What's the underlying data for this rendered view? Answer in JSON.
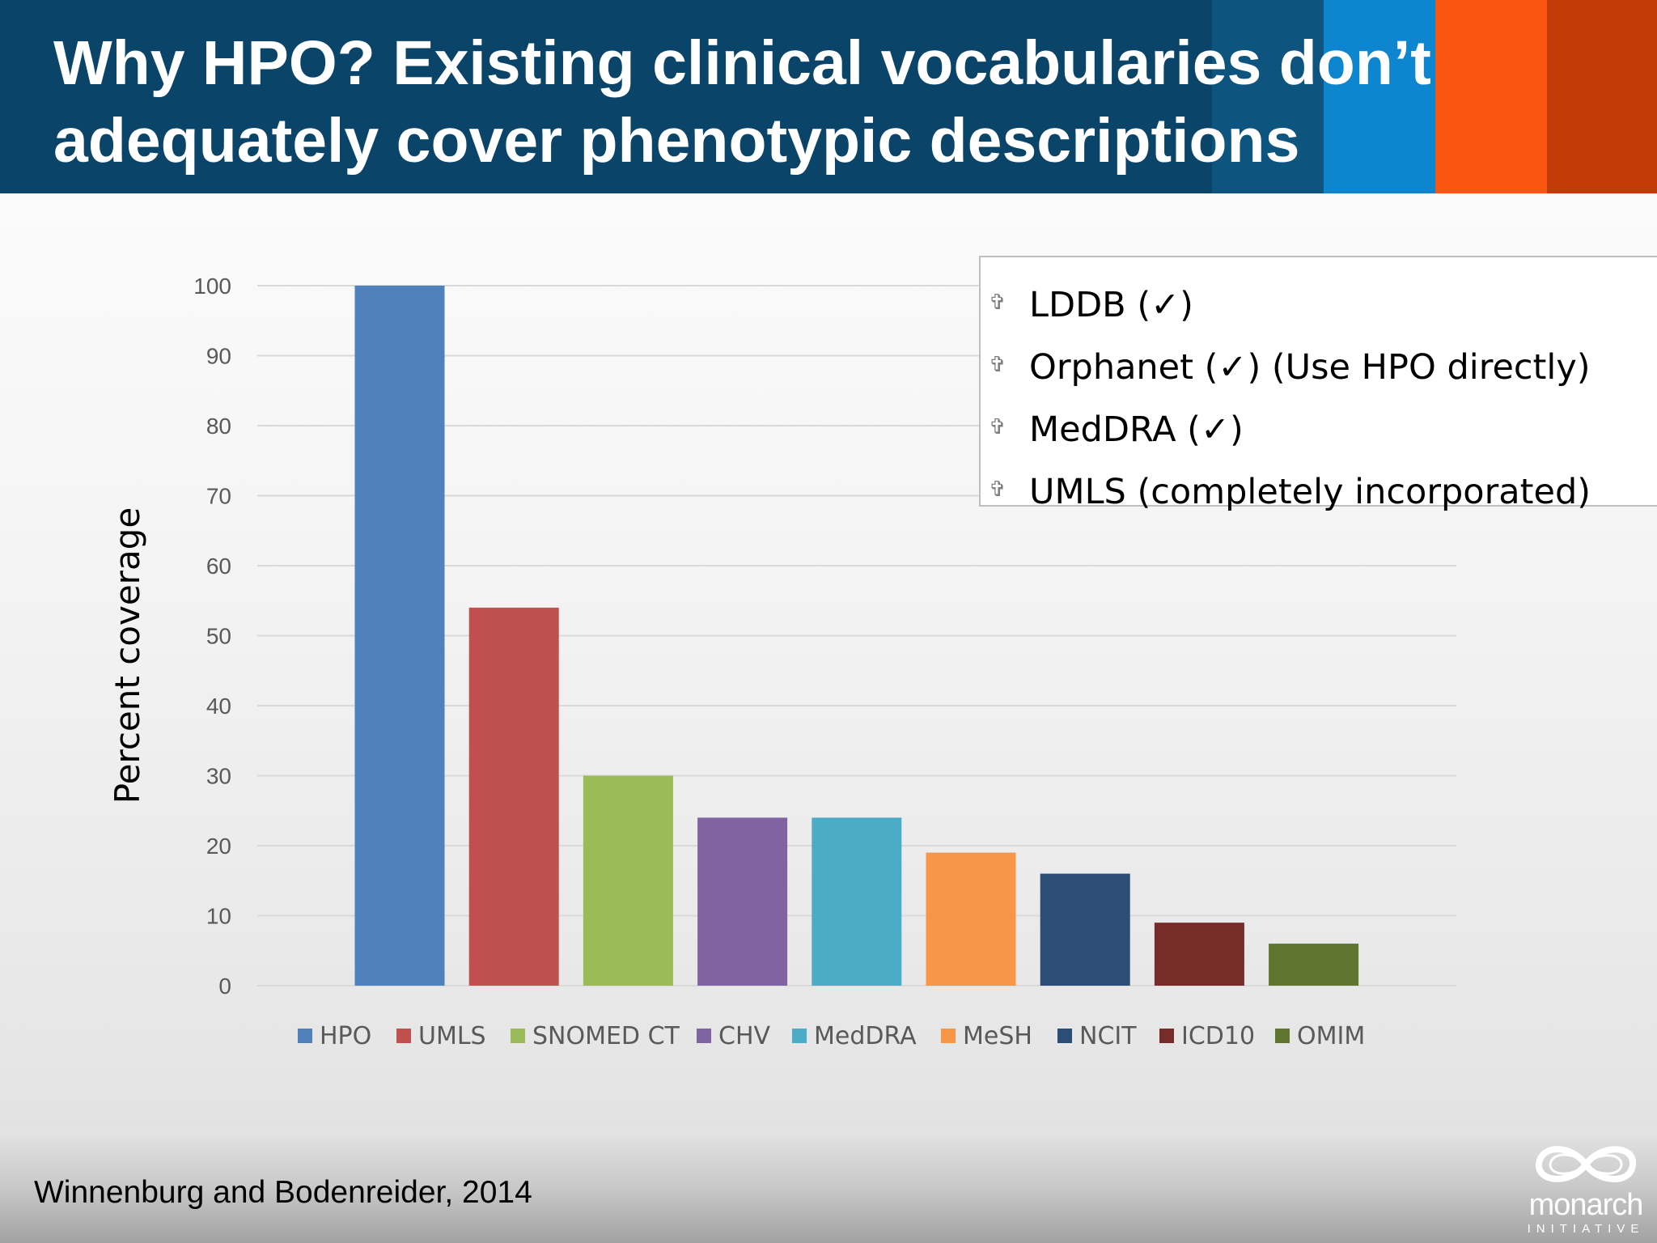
{
  "slide": {
    "title_lines": [
      "Why HPO? Existing clinical vocabularies don’t",
      "adequately cover phenotypic descriptions"
    ],
    "citation": "Winnenburg and Bodenreider, 2014",
    "logo": {
      "word": "monarch",
      "sub": "INITIATIVE"
    }
  },
  "notes": {
    "bullet_icon": "cross-bullet-icon",
    "items": [
      "LDDB (✓)",
      "Orphanet (✓) (Use HPO directly)",
      "MedDRA (✓)",
      "UMLS (completely incorporated)"
    ]
  },
  "colors": {
    "header_bg": "#0b4469",
    "stripes": [
      "#0d547f",
      "#0e86cf",
      "#fb5512",
      "#c23a08"
    ]
  },
  "chart_data": {
    "type": "bar",
    "title": "",
    "xlabel": "",
    "ylabel": "Percent coverage",
    "ylim": [
      0,
      100
    ],
    "yticks": [
      0,
      10,
      20,
      30,
      40,
      50,
      60,
      70,
      80,
      90,
      100
    ],
    "grid": true,
    "legend_position": "bottom",
    "categories": [
      "HPO",
      "UMLS",
      "SNOMED CT",
      "CHV",
      "MedDRA",
      "MeSH",
      "NCIT",
      "ICD10",
      "OMIM"
    ],
    "values": [
      100,
      54,
      30,
      24,
      24,
      19,
      16,
      9,
      6
    ],
    "colors": [
      "#4f81bd",
      "#c0504d",
      "#9bbb59",
      "#8064a2",
      "#4bacc6",
      "#f79646",
      "#2c4d75",
      "#772c2a",
      "#5f7530"
    ]
  }
}
